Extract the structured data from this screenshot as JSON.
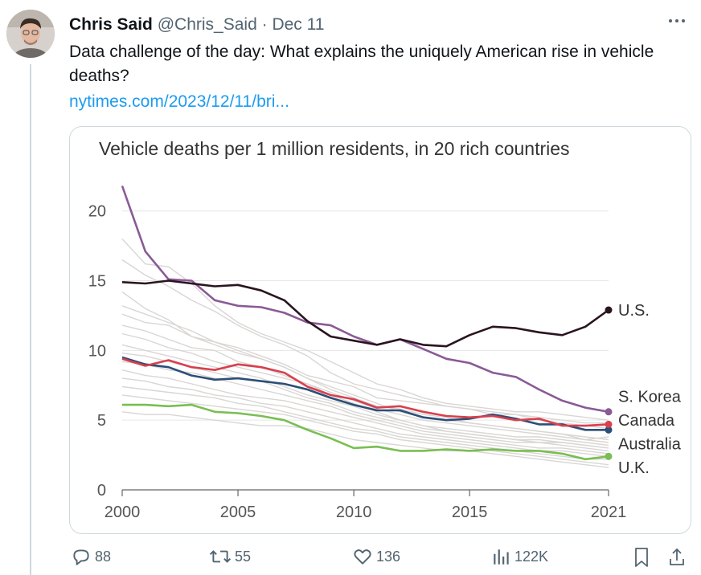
{
  "author": {
    "name": "Chris Said",
    "handle": "@Chris_Said",
    "separator": "·",
    "date": "Dec 11"
  },
  "tweet": {
    "text": "Data challenge of the day: What explains the uniquely American rise in vehicle deaths?",
    "link": "nytimes.com/2023/12/11/bri..."
  },
  "more_icon": "more-horizontal-icon",
  "actions": {
    "replies": "88",
    "reposts": "55",
    "likes": "136",
    "views": "122K"
  },
  "chart_data": {
    "type": "line",
    "title": "Vehicle deaths per 1 million residents, in 20 rich countries",
    "xlim": [
      2000,
      2021
    ],
    "ylim": [
      0,
      22
    ],
    "xticks": [
      2000,
      2005,
      2010,
      2015,
      2021
    ],
    "yticks": [
      0,
      5,
      10,
      15,
      20
    ],
    "grid": "horizontal",
    "x": [
      2000,
      2001,
      2002,
      2003,
      2004,
      2005,
      2006,
      2007,
      2008,
      2009,
      2010,
      2011,
      2012,
      2013,
      2014,
      2015,
      2016,
      2017,
      2018,
      2019,
      2020,
      2021
    ],
    "series": [
      {
        "name": "U.S.",
        "color": "#2a1420",
        "values": [
          14.9,
          14.8,
          15.0,
          14.8,
          14.6,
          14.7,
          14.3,
          13.6,
          12.1,
          11.0,
          10.7,
          10.4,
          10.8,
          10.4,
          10.3,
          11.1,
          11.7,
          11.6,
          11.3,
          11.1,
          11.7,
          12.9
        ]
      },
      {
        "name": "S. Korea",
        "color": "#8a5a96",
        "values": [
          21.8,
          17.1,
          15.1,
          15.0,
          13.6,
          13.2,
          13.1,
          12.7,
          12.0,
          11.8,
          11.0,
          10.4,
          10.8,
          10.1,
          9.4,
          9.1,
          8.4,
          8.1,
          7.2,
          6.4,
          5.9,
          5.6
        ]
      },
      {
        "name": "Canada",
        "color": "#d8404e",
        "values": [
          9.4,
          8.9,
          9.3,
          8.8,
          8.6,
          9.0,
          8.8,
          8.4,
          7.4,
          6.8,
          6.5,
          5.9,
          6.0,
          5.6,
          5.3,
          5.2,
          5.3,
          5.0,
          5.1,
          4.6,
          4.6,
          4.7
        ]
      },
      {
        "name": "Australia",
        "color": "#2b4f78",
        "values": [
          9.5,
          9.0,
          8.8,
          8.2,
          7.9,
          8.0,
          7.8,
          7.6,
          7.2,
          6.6,
          6.1,
          5.7,
          5.7,
          5.2,
          5.0,
          5.1,
          5.4,
          5.1,
          4.7,
          4.7,
          4.3,
          4.3
        ]
      },
      {
        "name": "U.K.",
        "color": "#79be52",
        "values": [
          6.1,
          6.1,
          6.0,
          6.1,
          5.6,
          5.5,
          5.3,
          5.0,
          4.3,
          3.7,
          3.0,
          3.1,
          2.8,
          2.8,
          2.9,
          2.8,
          2.9,
          2.8,
          2.8,
          2.6,
          2.2,
          2.4
        ]
      }
    ],
    "other_series_color": "#d9d6d4",
    "other_series": [
      [
        18.0,
        16.2,
        16.0,
        14.8,
        13.2,
        12.0,
        11.2,
        10.6,
        10.0,
        9.2,
        8.4,
        7.6,
        7.2,
        6.6,
        6.2,
        6.0,
        5.8,
        5.6,
        5.6,
        5.4,
        5.2,
        5.0
      ],
      [
        16.5,
        15.4,
        14.6,
        13.6,
        12.8,
        11.8,
        11.0,
        10.4,
        9.6,
        8.4,
        7.6,
        7.2,
        6.8,
        6.4,
        6.0,
        5.8,
        5.6,
        5.4,
        5.2,
        5.0,
        4.8,
        4.8
      ],
      [
        14.2,
        13.0,
        12.2,
        11.0,
        10.6,
        10.2,
        9.6,
        9.0,
        8.2,
        7.8,
        7.4,
        6.6,
        6.4,
        6.2,
        6.0,
        5.8,
        5.4,
        5.4,
        5.0,
        4.8,
        4.6,
        4.4
      ],
      [
        13.2,
        12.6,
        12.0,
        11.4,
        10.6,
        10.0,
        9.4,
        8.8,
        8.0,
        7.4,
        6.8,
        6.2,
        5.6,
        5.2,
        5.0,
        4.8,
        4.6,
        4.4,
        4.2,
        4.0,
        3.6,
        3.8
      ],
      [
        12.6,
        12.0,
        11.8,
        11.0,
        10.4,
        9.8,
        9.4,
        8.8,
        8.0,
        7.2,
        6.6,
        6.0,
        5.8,
        5.4,
        5.2,
        4.8,
        4.6,
        4.4,
        4.2,
        4.0,
        3.8,
        3.6
      ],
      [
        11.8,
        11.4,
        10.8,
        10.2,
        10.0,
        9.2,
        8.8,
        8.2,
        7.6,
        7.0,
        6.4,
        5.8,
        5.4,
        5.0,
        4.8,
        4.6,
        4.4,
        4.2,
        4.0,
        3.8,
        3.6,
        3.4
      ],
      [
        11.2,
        10.8,
        10.2,
        9.8,
        9.2,
        8.8,
        8.4,
        8.0,
        7.6,
        6.8,
        6.2,
        5.6,
        5.0,
        4.6,
        4.4,
        4.2,
        4.0,
        3.8,
        3.8,
        3.6,
        3.4,
        3.2
      ],
      [
        10.4,
        10.0,
        9.6,
        9.2,
        8.8,
        8.4,
        8.0,
        7.4,
        6.8,
        6.4,
        6.0,
        5.4,
        5.0,
        4.6,
        4.2,
        4.0,
        3.8,
        3.6,
        3.4,
        3.4,
        3.2,
        3.0
      ],
      [
        9.8,
        9.6,
        9.2,
        8.8,
        8.4,
        8.0,
        7.8,
        7.2,
        6.6,
        6.2,
        5.6,
        5.2,
        4.8,
        4.4,
        4.2,
        4.0,
        3.8,
        3.6,
        3.6,
        3.4,
        3.2,
        3.0
      ],
      [
        9.2,
        9.0,
        8.6,
        8.4,
        8.0,
        7.6,
        7.2,
        6.8,
        6.4,
        6.0,
        5.4,
        5.0,
        4.6,
        4.2,
        4.0,
        3.8,
        3.6,
        3.4,
        3.4,
        3.2,
        3.0,
        2.8
      ],
      [
        8.6,
        8.2,
        8.0,
        7.6,
        7.2,
        6.8,
        6.6,
        6.4,
        6.0,
        5.6,
        5.2,
        4.8,
        4.4,
        4.0,
        3.8,
        3.6,
        3.4,
        3.2,
        3.0,
        3.0,
        2.8,
        2.6
      ],
      [
        8.0,
        7.8,
        7.4,
        7.2,
        6.8,
        6.6,
        6.2,
        6.0,
        5.6,
        5.2,
        4.8,
        4.4,
        4.0,
        3.8,
        3.6,
        3.4,
        3.2,
        3.0,
        2.8,
        2.8,
        2.6,
        2.4
      ],
      [
        7.4,
        7.2,
        7.0,
        6.8,
        6.6,
        6.2,
        6.0,
        5.6,
        5.2,
        4.8,
        4.4,
        4.2,
        3.8,
        3.6,
        3.4,
        3.2,
        3.0,
        2.8,
        2.6,
        2.4,
        2.2,
        2.2
      ],
      [
        6.8,
        6.6,
        6.4,
        6.2,
        6.0,
        5.8,
        5.6,
        5.4,
        5.0,
        4.6,
        4.2,
        4.0,
        3.6,
        3.4,
        3.2,
        3.0,
        2.8,
        2.6,
        2.4,
        2.2,
        2.0,
        1.8
      ],
      [
        5.6,
        5.4,
        5.4,
        5.2,
        5.0,
        4.8,
        4.6,
        4.6,
        4.4,
        4.0,
        3.6,
        3.4,
        3.2,
        3.0,
        2.8,
        2.8,
        2.6,
        2.4,
        2.2,
        2.0,
        1.8,
        1.6
      ]
    ]
  }
}
